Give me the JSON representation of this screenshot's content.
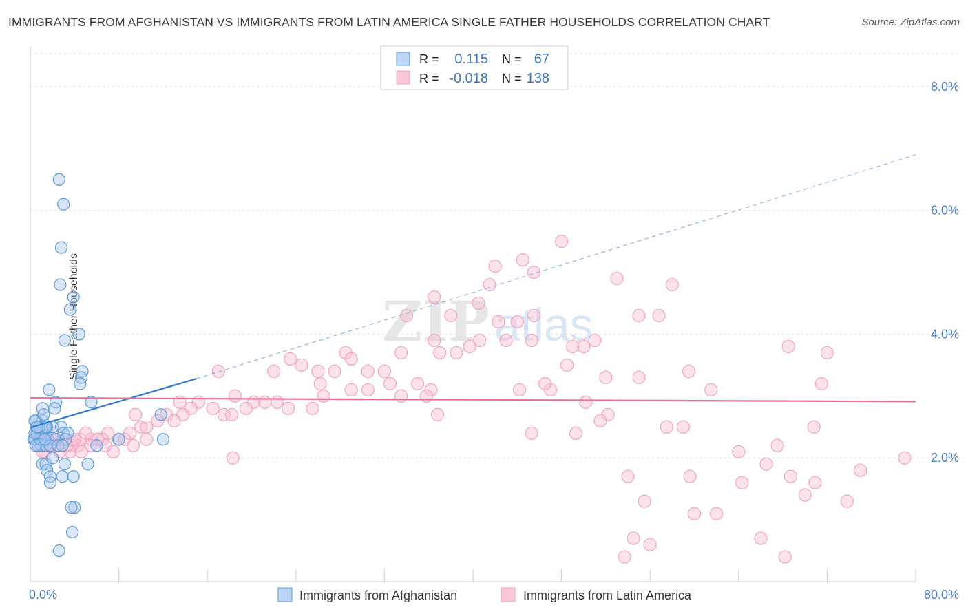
{
  "title": "IMMIGRANTS FROM AFGHANISTAN VS IMMIGRANTS FROM LATIN AMERICA SINGLE FATHER HOUSEHOLDS CORRELATION CHART",
  "source": "Source: ZipAtlas.com",
  "watermark": {
    "zip": "ZIP",
    "atlas": "atlas"
  },
  "legend_box": {
    "rows": [
      {
        "r_label": "R =",
        "r_value": "0.115",
        "n_label": "N =",
        "n_value": "67"
      },
      {
        "r_label": "R =",
        "r_value": "-0.018",
        "n_label": "N =",
        "n_value": "138"
      }
    ]
  },
  "colors": {
    "blue": "#5b9bd5",
    "blue_line": "#2f78d0",
    "pink": "#f2a0bb",
    "pink_line": "#e8709a",
    "axis_text": "#4a7cc7"
  },
  "chart_data": {
    "type": "scatter",
    "title": "IMMIGRANTS FROM AFGHANISTAN VS IMMIGRANTS FROM LATIN AMERICA SINGLE FATHER HOUSEHOLDS CORRELATION CHART",
    "xlabel": "",
    "ylabel": "Single Father Households",
    "xlim": [
      0,
      80
    ],
    "ylim": [
      0,
      8.5
    ],
    "x_tick_labels": [
      "0.0%",
      "80.0%"
    ],
    "y_ticks": [
      2,
      4,
      6,
      8
    ],
    "y_tick_labels": [
      "2.0%",
      "4.0%",
      "6.0%",
      "8.0%"
    ],
    "grid": true,
    "legend_position": "bottom",
    "series": [
      {
        "name": "Immigrants from Afghanistan",
        "color": "#5b9bd5",
        "trend": {
          "x": [
            0,
            15
          ],
          "y": [
            2.49,
            3.28
          ],
          "extended_to": [
            80,
            6.9
          ]
        },
        "points": [
          [
            2.6,
            6.5
          ],
          [
            3.0,
            6.1
          ],
          [
            2.8,
            5.4
          ],
          [
            2.7,
            4.8
          ],
          [
            3.9,
            4.6
          ],
          [
            3.6,
            4.4
          ],
          [
            4.4,
            4.0
          ],
          [
            3.1,
            3.9
          ],
          [
            4.7,
            3.4
          ],
          [
            4.6,
            3.3
          ],
          [
            4.5,
            3.2
          ],
          [
            1.7,
            3.1
          ],
          [
            2.3,
            2.9
          ],
          [
            1.1,
            2.8
          ],
          [
            5.5,
            2.9
          ],
          [
            2.2,
            2.8
          ],
          [
            0.5,
            2.6
          ],
          [
            1.1,
            2.6
          ],
          [
            1.5,
            2.5
          ],
          [
            2.0,
            2.5
          ],
          [
            2.8,
            2.5
          ],
          [
            1.3,
            2.5
          ],
          [
            0.6,
            2.4
          ],
          [
            3.0,
            2.4
          ],
          [
            3.4,
            2.4
          ],
          [
            0.8,
            2.3
          ],
          [
            1.2,
            2.3
          ],
          [
            1.6,
            2.3
          ],
          [
            2.3,
            2.3
          ],
          [
            3.2,
            2.3
          ],
          [
            0.4,
            2.3
          ],
          [
            0.7,
            2.2
          ],
          [
            1.0,
            2.2
          ],
          [
            1.4,
            2.2
          ],
          [
            1.8,
            2.2
          ],
          [
            2.5,
            2.2
          ],
          [
            0.3,
            2.3
          ],
          [
            0.5,
            2.2
          ],
          [
            0.9,
            2.3
          ],
          [
            2.9,
            2.2
          ],
          [
            0.6,
            2.4
          ],
          [
            1.0,
            2.4
          ],
          [
            1.4,
            2.5
          ],
          [
            0.4,
            2.6
          ],
          [
            1.2,
            2.7
          ],
          [
            11.8,
            2.7
          ],
          [
            8.0,
            2.3
          ],
          [
            12.0,
            2.3
          ],
          [
            6.0,
            2.2
          ],
          [
            1.1,
            1.9
          ],
          [
            1.4,
            1.9
          ],
          [
            2.0,
            2.0
          ],
          [
            3.1,
            1.9
          ],
          [
            5.2,
            1.9
          ],
          [
            1.5,
            1.8
          ],
          [
            1.8,
            1.7
          ],
          [
            2.9,
            1.7
          ],
          [
            3.9,
            1.7
          ],
          [
            1.8,
            1.6
          ],
          [
            4.0,
            1.2
          ],
          [
            3.7,
            1.2
          ],
          [
            3.8,
            0.8
          ],
          [
            2.6,
            0.5
          ],
          [
            0.4,
            2.4
          ],
          [
            0.8,
            2.5
          ],
          [
            1.3,
            2.3
          ],
          [
            0.6,
            2.5
          ]
        ]
      },
      {
        "name": "Immigrants from Latin America",
        "color": "#f2a0bb",
        "trend": {
          "x": [
            0,
            80
          ],
          "y": [
            2.97,
            2.91
          ]
        },
        "points": [
          [
            48,
            5.5
          ],
          [
            44.5,
            5.2
          ],
          [
            42,
            5.1
          ],
          [
            45.5,
            5.0
          ],
          [
            53,
            4.9
          ],
          [
            41.5,
            4.8
          ],
          [
            58,
            4.8
          ],
          [
            36.5,
            4.6
          ],
          [
            40.5,
            4.5
          ],
          [
            34,
            4.3
          ],
          [
            38,
            4.3
          ],
          [
            42.3,
            4.2
          ],
          [
            44,
            4.2
          ],
          [
            45.5,
            4.3
          ],
          [
            55,
            4.3
          ],
          [
            56.8,
            4.3
          ],
          [
            36.5,
            3.9
          ],
          [
            40.6,
            3.9
          ],
          [
            43,
            3.9
          ],
          [
            45.3,
            3.9
          ],
          [
            49,
            3.8
          ],
          [
            50,
            3.8
          ],
          [
            51,
            3.9
          ],
          [
            37,
            3.7
          ],
          [
            38.5,
            3.7
          ],
          [
            39.7,
            3.8
          ],
          [
            68.5,
            3.8
          ],
          [
            72,
            3.7
          ],
          [
            28.5,
            3.7
          ],
          [
            33.5,
            3.7
          ],
          [
            29,
            3.6
          ],
          [
            23.5,
            3.6
          ],
          [
            24.5,
            3.5
          ],
          [
            26,
            3.4
          ],
          [
            27.5,
            3.4
          ],
          [
            30.5,
            3.4
          ],
          [
            32,
            3.4
          ],
          [
            22,
            3.4
          ],
          [
            17,
            3.4
          ],
          [
            48.5,
            3.5
          ],
          [
            59.5,
            3.4
          ],
          [
            52,
            3.3
          ],
          [
            55,
            3.3
          ],
          [
            32.5,
            3.2
          ],
          [
            35,
            3.2
          ],
          [
            26.2,
            3.2
          ],
          [
            36.2,
            3.1
          ],
          [
            44.2,
            3.1
          ],
          [
            47,
            3.1
          ],
          [
            46.5,
            3.2
          ],
          [
            61.5,
            3.1
          ],
          [
            71.5,
            3.2
          ],
          [
            29,
            3.1
          ],
          [
            30.5,
            3.1
          ],
          [
            33.5,
            3.0
          ],
          [
            35.8,
            3.0
          ],
          [
            26.5,
            3.0
          ],
          [
            18.5,
            3.0
          ],
          [
            20.2,
            2.9
          ],
          [
            22.3,
            2.9
          ],
          [
            23.3,
            2.8
          ],
          [
            25.5,
            2.8
          ],
          [
            21.2,
            2.9
          ],
          [
            19.5,
            2.8
          ],
          [
            16.5,
            2.8
          ],
          [
            15.2,
            2.9
          ],
          [
            14.5,
            2.8
          ],
          [
            13.5,
            2.9
          ],
          [
            50.2,
            2.9
          ],
          [
            17.5,
            2.7
          ],
          [
            18.2,
            2.7
          ],
          [
            13.8,
            2.7
          ],
          [
            12.3,
            2.7
          ],
          [
            11.5,
            2.6
          ],
          [
            13.0,
            2.6
          ],
          [
            9.5,
            2.7
          ],
          [
            36.8,
            2.7
          ],
          [
            52.2,
            2.7
          ],
          [
            51.5,
            2.6
          ],
          [
            10,
            2.5
          ],
          [
            10.5,
            2.5
          ],
          [
            57.5,
            2.5
          ],
          [
            59.0,
            2.5
          ],
          [
            70.8,
            2.5
          ],
          [
            45.3,
            2.4
          ],
          [
            49.3,
            2.4
          ],
          [
            7,
            2.4
          ],
          [
            9,
            2.4
          ],
          [
            8,
            2.3
          ],
          [
            5.5,
            2.3
          ],
          [
            6.5,
            2.3
          ],
          [
            8.5,
            2.3
          ],
          [
            10.5,
            2.3
          ],
          [
            4.5,
            2.3
          ],
          [
            3.0,
            2.3
          ],
          [
            1.6,
            2.3
          ],
          [
            4.3,
            2.2
          ],
          [
            5.5,
            2.2
          ],
          [
            6.8,
            2.2
          ],
          [
            2.2,
            2.2
          ],
          [
            3.8,
            2.2
          ],
          [
            1.0,
            2.3
          ],
          [
            0.8,
            2.2
          ],
          [
            2.5,
            2.2
          ],
          [
            3.6,
            2.1
          ],
          [
            2.7,
            2.1
          ],
          [
            1.8,
            2.2
          ],
          [
            3.3,
            2.2
          ],
          [
            4.6,
            2.1
          ],
          [
            18.3,
            2.0
          ],
          [
            64,
            2.1
          ],
          [
            67.5,
            2.2
          ],
          [
            66.5,
            1.9
          ],
          [
            75,
            1.8
          ],
          [
            79,
            2.0
          ],
          [
            68.7,
            1.7
          ],
          [
            54,
            1.7
          ],
          [
            59.6,
            1.7
          ],
          [
            64.3,
            1.6
          ],
          [
            70,
            1.4
          ],
          [
            70.9,
            1.6
          ],
          [
            73.8,
            1.3
          ],
          [
            55.5,
            1.3
          ],
          [
            60,
            1.1
          ],
          [
            62,
            1.1
          ],
          [
            66,
            0.7
          ],
          [
            54.5,
            0.7
          ],
          [
            56,
            0.6
          ],
          [
            53.7,
            0.4
          ],
          [
            68.2,
            0.4
          ],
          [
            0.4,
            2.3
          ],
          [
            1.3,
            2.1
          ],
          [
            2.0,
            2.4
          ],
          [
            1.1,
            2.1
          ],
          [
            4.0,
            2.3
          ],
          [
            7.5,
            2.1
          ],
          [
            9.3,
            2.2
          ],
          [
            5.0,
            2.4
          ],
          [
            6.1,
            2.3
          ]
        ]
      }
    ]
  }
}
